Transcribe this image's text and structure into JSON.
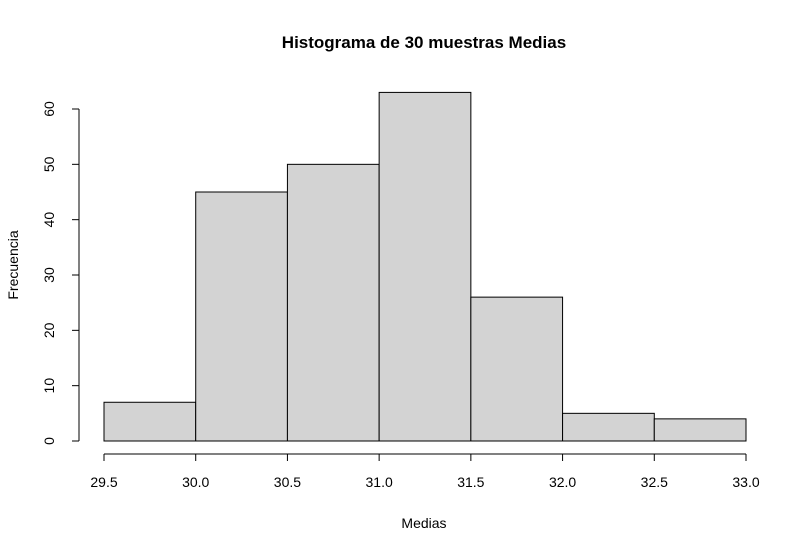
{
  "chart_data": {
    "type": "bar",
    "title": "Histograma de 30 muestras Medias",
    "xlabel": "Medias",
    "ylabel": "Frecuencia",
    "bin_edges": [
      29.5,
      30.0,
      30.5,
      31.0,
      31.5,
      32.0,
      32.5,
      33.0
    ],
    "values": [
      7,
      45,
      50,
      63,
      26,
      5,
      4
    ],
    "xlim": [
      29.5,
      33.0
    ],
    "ylim": [
      0,
      63
    ],
    "x_ticks": [
      "29.5",
      "30.0",
      "30.5",
      "31.0",
      "31.5",
      "32.0",
      "32.5",
      "33.0"
    ],
    "y_ticks": [
      "0",
      "10",
      "20",
      "30",
      "40",
      "50",
      "60"
    ],
    "bar_color": "#d3d3d3",
    "grid": false
  }
}
